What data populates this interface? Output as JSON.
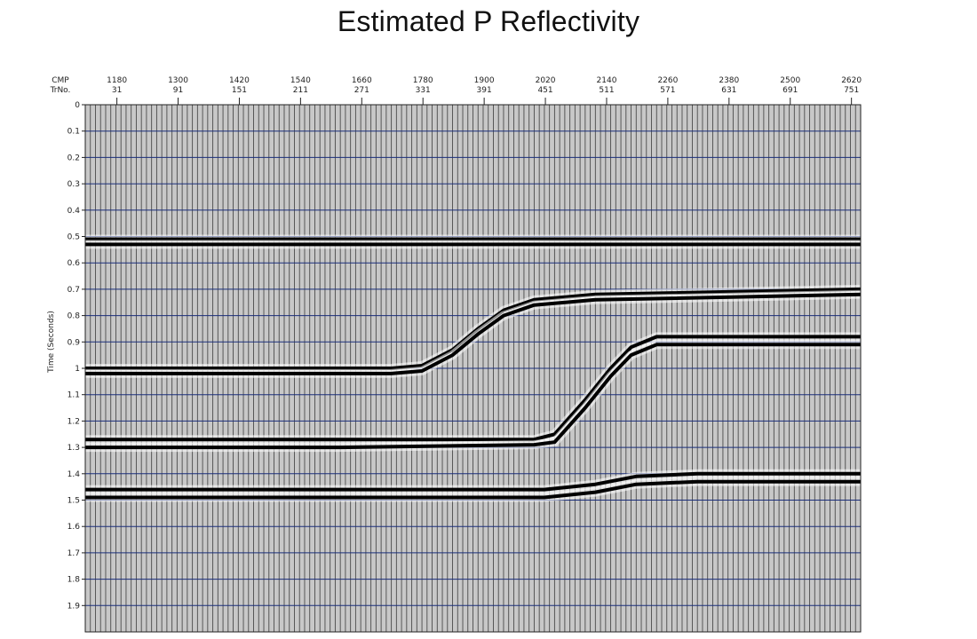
{
  "chart_data": {
    "type": "seismic-section",
    "title": "Estimated P Reflectivity",
    "ylabel": "Time (Seconds)",
    "top_axis": {
      "row1_label": "CMP",
      "row2_label": "TrNo.",
      "cmp": [
        "1180",
        "1300",
        "1420",
        "1540",
        "1660",
        "1780",
        "1900",
        "2020",
        "2140",
        "2260",
        "2380",
        "2500",
        "2620"
      ],
      "trace": [
        "31",
        "91",
        "151",
        "211",
        "271",
        "331",
        "391",
        "451",
        "511",
        "571",
        "631",
        "691",
        "751"
      ]
    },
    "trace_range": [
      0,
      760
    ],
    "time_range": [
      0,
      2.0
    ],
    "time_ticks": [
      "0",
      "0.1",
      "0.2",
      "0.3",
      "0.4",
      "0.5",
      "0.6",
      "0.7",
      "0.8",
      "0.9",
      "1",
      "1.1",
      "1.2",
      "1.3",
      "1.4",
      "1.5",
      "1.6",
      "1.7",
      "1.8",
      "1.9"
    ],
    "trace_spacing": 5,
    "grid": true,
    "colors": {
      "grid": "#1a2e7a",
      "trace": "#222222",
      "reflector": "#000000",
      "background": "#c8c8c8"
    },
    "reflectors": [
      {
        "name": "",
        "points": [
          [
            0,
            0.51
          ],
          [
            760,
            0.51
          ]
        ]
      },
      {
        "name": "",
        "points": [
          [
            0,
            0.53
          ],
          [
            760,
            0.53
          ]
        ]
      },
      {
        "name": "",
        "points": [
          [
            0,
            1.0
          ],
          [
            300,
            1.0
          ],
          [
            330,
            0.99
          ],
          [
            360,
            0.93
          ],
          [
            385,
            0.85
          ],
          [
            410,
            0.78
          ],
          [
            440,
            0.74
          ],
          [
            500,
            0.72
          ],
          [
            760,
            0.7
          ]
        ]
      },
      {
        "name": "",
        "points": [
          [
            0,
            1.02
          ],
          [
            300,
            1.02
          ],
          [
            330,
            1.01
          ],
          [
            360,
            0.95
          ],
          [
            385,
            0.87
          ],
          [
            410,
            0.8
          ],
          [
            440,
            0.76
          ],
          [
            500,
            0.74
          ],
          [
            760,
            0.72
          ]
        ]
      },
      {
        "name": "",
        "points": [
          [
            0,
            1.27
          ],
          [
            250,
            1.27
          ],
          [
            440,
            1.27
          ],
          [
            460,
            1.25
          ],
          [
            490,
            1.12
          ],
          [
            515,
            1.0
          ],
          [
            535,
            0.92
          ],
          [
            560,
            0.88
          ],
          [
            760,
            0.88
          ]
        ]
      },
      {
        "name": "",
        "points": [
          [
            0,
            1.3
          ],
          [
            250,
            1.3
          ],
          [
            440,
            1.29
          ],
          [
            460,
            1.28
          ],
          [
            490,
            1.15
          ],
          [
            515,
            1.03
          ],
          [
            535,
            0.95
          ],
          [
            560,
            0.91
          ],
          [
            760,
            0.91
          ]
        ]
      },
      {
        "name": "",
        "points": [
          [
            0,
            1.46
          ],
          [
            300,
            1.46
          ],
          [
            450,
            1.46
          ],
          [
            500,
            1.44
          ],
          [
            540,
            1.41
          ],
          [
            600,
            1.4
          ],
          [
            760,
            1.4
          ]
        ]
      },
      {
        "name": "",
        "points": [
          [
            0,
            1.49
          ],
          [
            300,
            1.49
          ],
          [
            450,
            1.49
          ],
          [
            500,
            1.47
          ],
          [
            540,
            1.44
          ],
          [
            600,
            1.43
          ],
          [
            760,
            1.43
          ]
        ]
      }
    ]
  }
}
